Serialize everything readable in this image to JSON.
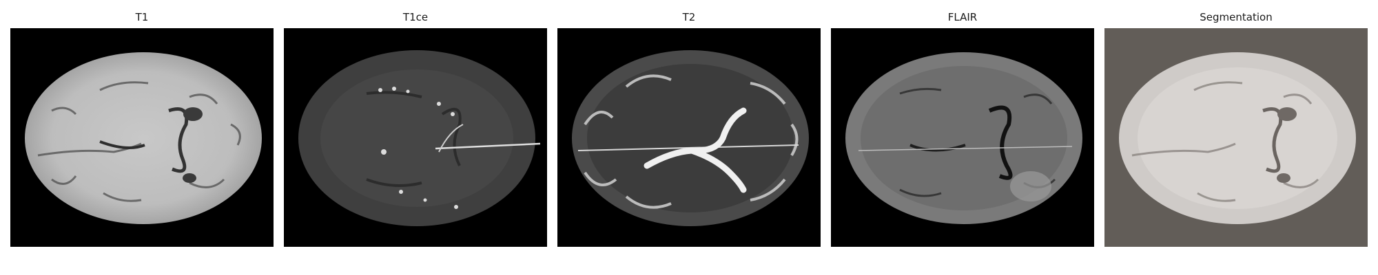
{
  "panels": [
    {
      "title": "T1",
      "background": "#000000"
    },
    {
      "title": "T1ce",
      "background": "#000000"
    },
    {
      "title": "T2",
      "background": "#000000"
    },
    {
      "title": "FLAIR",
      "background": "#000000"
    },
    {
      "title": "Segmentation",
      "background": "#625d58"
    }
  ]
}
